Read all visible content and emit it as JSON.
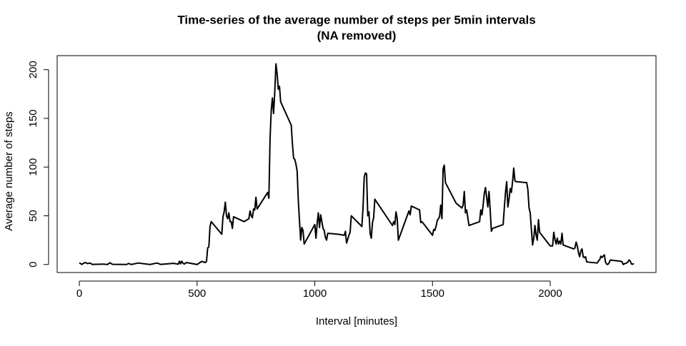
{
  "chart_data": {
    "type": "line",
    "title": "Time-series of the average number of steps per 5min intervals",
    "subtitle": "(NA removed)",
    "x_label": "Interval [minutes]",
    "y_label": "Average number of steps",
    "xlim": [
      -94.2,
      2449.2
    ],
    "xticks": [
      0,
      500,
      1000,
      1500,
      2000
    ],
    "ylim": [
      -8.25,
      214.4
    ],
    "yticks": [
      0,
      50,
      100,
      150,
      200
    ],
    "series": [
      {
        "color": "#000000",
        "x": [
          0,
          10,
          25,
          35,
          45,
          55,
          100,
          120,
          130,
          140,
          200,
          210,
          220,
          250,
          300,
          330,
          345,
          400,
          420,
          425,
          430,
          435,
          440,
          445,
          455,
          500,
          520,
          535,
          540,
          545,
          550,
          555,
          560,
          605,
          610,
          615,
          620,
          625,
          630,
          635,
          640,
          645,
          650,
          655,
          700,
          720,
          725,
          730,
          735,
          740,
          745,
          750,
          755,
          800,
          805,
          810,
          815,
          820,
          825,
          830,
          835,
          840,
          845,
          850,
          855,
          900,
          905,
          910,
          915,
          920,
          925,
          930,
          935,
          940,
          945,
          950,
          955,
          1000,
          1005,
          1010,
          1015,
          1020,
          1025,
          1030,
          1035,
          1040,
          1045,
          1050,
          1055,
          1100,
          1125,
          1130,
          1135,
          1140,
          1145,
          1150,
          1155,
          1200,
          1205,
          1210,
          1215,
          1220,
          1225,
          1230,
          1235,
          1240,
          1245,
          1250,
          1255,
          1330,
          1335,
          1340,
          1345,
          1350,
          1355,
          1400,
          1405,
          1410,
          1445,
          1450,
          1455,
          1500,
          1505,
          1510,
          1515,
          1520,
          1525,
          1530,
          1535,
          1540,
          1545,
          1550,
          1555,
          1600,
          1625,
          1630,
          1635,
          1640,
          1645,
          1650,
          1655,
          1700,
          1705,
          1710,
          1715,
          1720,
          1725,
          1730,
          1735,
          1740,
          1745,
          1750,
          1755,
          1800,
          1805,
          1810,
          1815,
          1820,
          1825,
          1830,
          1835,
          1840,
          1845,
          1850,
          1855,
          1900,
          1905,
          1910,
          1915,
          1920,
          1925,
          1930,
          1935,
          1940,
          1945,
          1950,
          1955,
          2000,
          2005,
          2010,
          2015,
          2020,
          2025,
          2030,
          2035,
          2040,
          2045,
          2050,
          2055,
          2100,
          2105,
          2110,
          2115,
          2120,
          2125,
          2130,
          2135,
          2140,
          2145,
          2150,
          2155,
          2200,
          2205,
          2210,
          2215,
          2220,
          2225,
          2230,
          2235,
          2240,
          2245,
          2250,
          2255,
          2300,
          2305,
          2310,
          2315,
          2320,
          2325,
          2330,
          2335,
          2340,
          2345,
          2350,
          2355
        ],
        "values": [
          1.7,
          0.1,
          2.1,
          0.9,
          1.5,
          0.1,
          0.4,
          0,
          1.8,
          0.2,
          0,
          1.1,
          0,
          1.5,
          0,
          1.5,
          0.1,
          1.2,
          0.3,
          3.3,
          0.7,
          3.4,
          1.5,
          0.4,
          2,
          0,
          3.2,
          2,
          3,
          17,
          18,
          39,
          44,
          31,
          49,
          54,
          64,
          50,
          47,
          53,
          44,
          44,
          37,
          49,
          44,
          47,
          55,
          50,
          48,
          57,
          56,
          69,
          57,
          74,
          68,
          129,
          158,
          171,
          155,
          177,
          206,
          196,
          180,
          183,
          167,
          143,
          124,
          109,
          108,
          103,
          96,
          66,
          45,
          25,
          38,
          35,
          21,
          41,
          27,
          42,
          53,
          38,
          51,
          44,
          37,
          35,
          28,
          25,
          32,
          31,
          30,
          34,
          22,
          26,
          30,
          33,
          50,
          39,
          59,
          90,
          94,
          93,
          50,
          54,
          32,
          27,
          43,
          48,
          67,
          40,
          44,
          41,
          54,
          47,
          25,
          55,
          51,
          60,
          56,
          43,
          44,
          30,
          36,
          35,
          39,
          45,
          47,
          49,
          61,
          47,
          98,
          102,
          84,
          63,
          58,
          61,
          75,
          53,
          56,
          48,
          40,
          44,
          56,
          51,
          61,
          73,
          79,
          69,
          59,
          75,
          56,
          34,
          37,
          41,
          58,
          74,
          85,
          59,
          67,
          78,
          74,
          85,
          99,
          86,
          85,
          84,
          77,
          58,
          53,
          36,
          20,
          27,
          40,
          30,
          25,
          46,
          33,
          19,
          19,
          19,
          33,
          26,
          21,
          27,
          21,
          24,
          21,
          32,
          20,
          16,
          17,
          23,
          19,
          12,
          8,
          14,
          16,
          8,
          7,
          8,
          2.6,
          1.5,
          3.7,
          4.8,
          8.5,
          7.1,
          8.7,
          9.8,
          2.2,
          0.3,
          0.1,
          1.6,
          4.6,
          3.3,
          2.8,
          0,
          0.8,
          1,
          1.6,
          2.6,
          4.7,
          3.3,
          0.6,
          0.2,
          1.1
        ]
      }
    ]
  }
}
